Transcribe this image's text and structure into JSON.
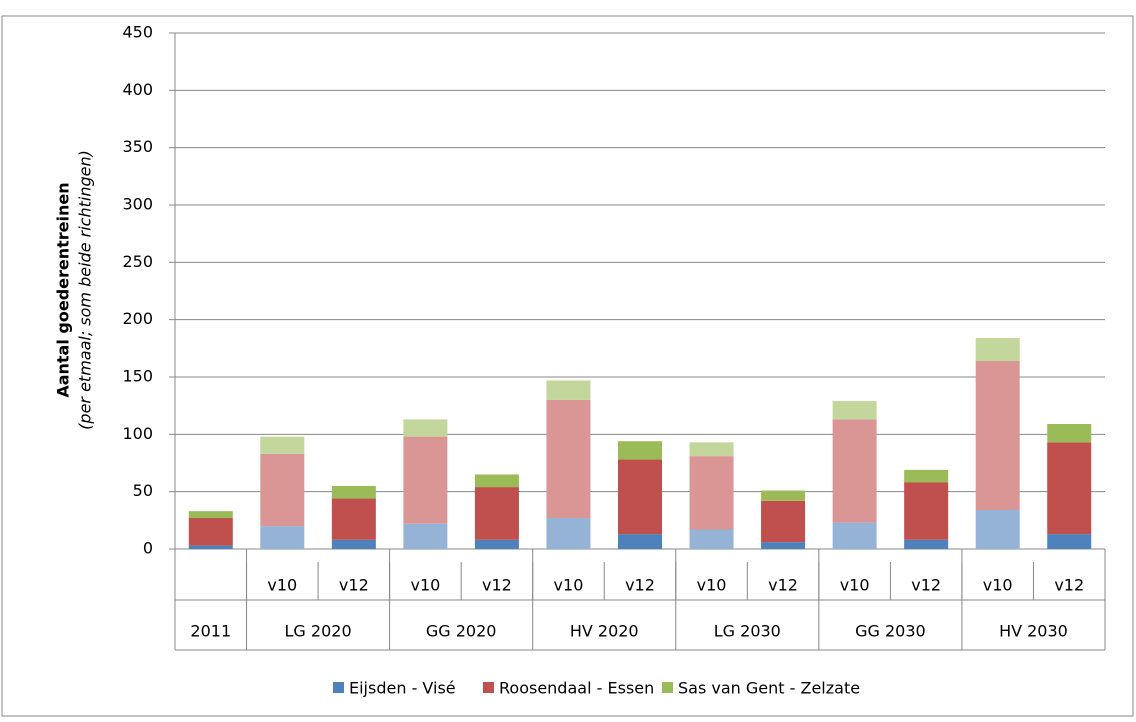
{
  "chart_data": {
    "type": "stacked_bar",
    "y_label": "Aantal goederentreinen",
    "y_sublabel": "(per etmaal; som beide richtingen)",
    "categories": [
      null,
      "v10",
      "v12",
      "v10",
      "v12",
      "v10",
      "v12",
      "v10",
      "v12",
      "v10",
      "v12",
      "v10",
      "v12"
    ],
    "groups": [
      {
        "label": "2011",
        "span": 1
      },
      {
        "label": "LG 2020",
        "span": 2
      },
      {
        "label": "GG 2020",
        "span": 2
      },
      {
        "label": "HV 2020",
        "span": 2
      },
      {
        "label": "LG 2030",
        "span": 2
      },
      {
        "label": "GG 2030",
        "span": 2
      },
      {
        "label": "HV 2030",
        "span": 2
      }
    ],
    "series": [
      {
        "name": "Eijsden - Visé",
        "color": "#4f81bd",
        "light_color": "#95b3d7",
        "values": [
          3,
          20,
          8,
          22,
          8,
          27,
          13,
          17,
          6,
          23,
          8,
          34,
          13
        ]
      },
      {
        "name": "Roosendaal - Essen",
        "color": "#c0504d",
        "light_color": "#d99694",
        "values": [
          24,
          63,
          36,
          76,
          46,
          103,
          65,
          64,
          36,
          90,
          50,
          130,
          80
        ]
      },
      {
        "name": "Sas van Gent - Zelzate",
        "color": "#9bbb59",
        "light_color": "#c3d69b",
        "values": [
          6,
          15,
          11,
          15,
          11,
          17,
          16,
          12,
          9,
          16,
          11,
          20,
          16
        ]
      }
    ],
    "light_category": "v10",
    "ylim": [
      0,
      450
    ],
    "yticks": [
      0,
      50,
      100,
      150,
      200,
      250,
      300,
      350,
      400,
      450
    ],
    "grid": true
  }
}
